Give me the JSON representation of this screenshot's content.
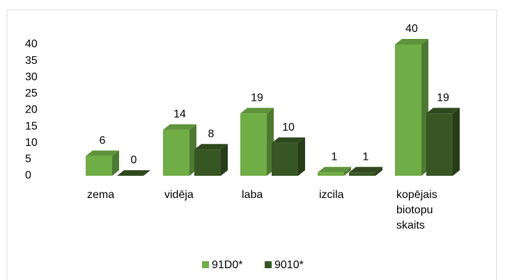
{
  "chart_data": {
    "type": "bar3d",
    "categories": [
      "zema",
      "vidēja",
      "laba",
      "izcila",
      "kopējais biotopu skaits"
    ],
    "series": [
      {
        "name": "91D0*",
        "color": "#70ad47",
        "values": [
          6,
          14,
          19,
          1,
          40
        ]
      },
      {
        "name": "9010*",
        "color": "#375623",
        "values": [
          0,
          8,
          10,
          1,
          19
        ]
      }
    ],
    "ylim": [
      0,
      40
    ],
    "yticks": [
      0,
      5,
      10,
      15,
      20,
      25,
      30,
      35,
      40
    ],
    "grid": false,
    "legend": "bottom"
  }
}
